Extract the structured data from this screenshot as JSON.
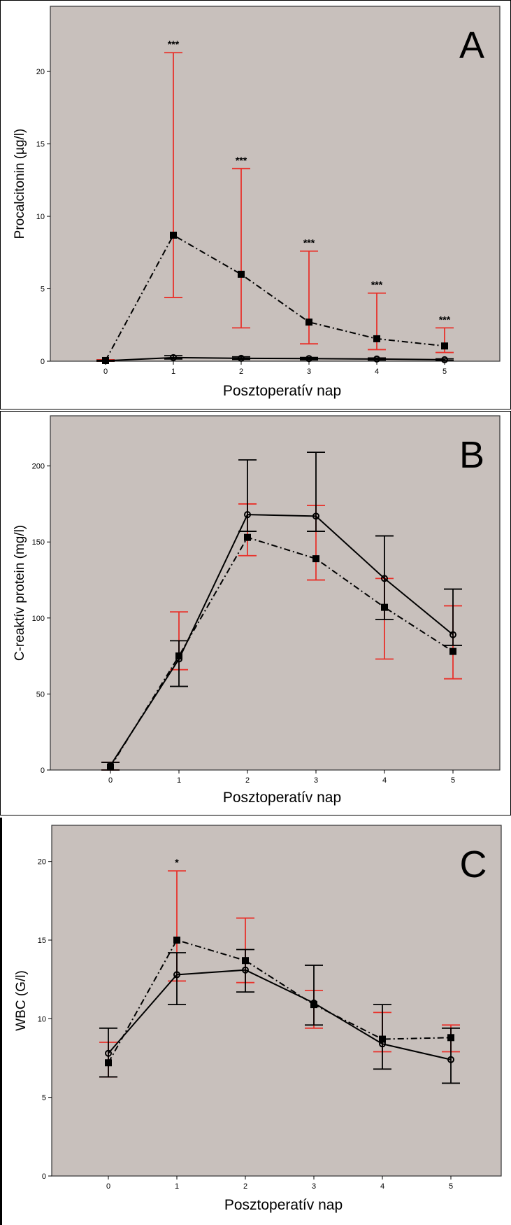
{
  "chart_data": [
    {
      "type": "line",
      "panel_label": "A",
      "xlabel": "Posztoperatív nap",
      "ylabel": "Procalcitonin (µg/l)",
      "categories": [
        "0",
        "1",
        "2",
        "3",
        "4",
        "5"
      ],
      "yticks": [
        "0",
        "5",
        "10",
        "15",
        "20"
      ],
      "ylim": [
        0,
        24.5
      ],
      "grid": false,
      "significance": [
        "",
        "***",
        "***",
        "***",
        "***",
        "***"
      ],
      "series": [
        {
          "style": "dash-dot",
          "marker": "square",
          "error_color": "#e8322b",
          "values": [
            0.05,
            8.7,
            6.0,
            2.7,
            1.55,
            1.05
          ],
          "err_low": [
            0.0,
            4.4,
            2.3,
            1.2,
            0.8,
            0.6
          ],
          "err_high": [
            0.1,
            21.3,
            13.3,
            7.6,
            4.7,
            2.3
          ]
        },
        {
          "style": "solid",
          "marker": "circle",
          "error_color": "#000000",
          "values": [
            0.03,
            0.25,
            0.2,
            0.18,
            0.15,
            0.1
          ],
          "err_low": [
            0.0,
            0.15,
            0.12,
            0.1,
            0.08,
            0.05
          ],
          "err_high": [
            0.06,
            0.38,
            0.3,
            0.26,
            0.22,
            0.16
          ]
        }
      ]
    },
    {
      "type": "line",
      "panel_label": "B",
      "xlabel": "Posztoperatív nap",
      "ylabel": "C-reaktív protein (mg/l)",
      "categories": [
        "0",
        "1",
        "2",
        "3",
        "4",
        "5"
      ],
      "yticks": [
        "0",
        "50",
        "100",
        "150",
        "200"
      ],
      "ylim": [
        0,
        233
      ],
      "grid": false,
      "significance": [
        "",
        "",
        "",
        "",
        "",
        ""
      ],
      "series": [
        {
          "style": "dash-dot",
          "marker": "square",
          "error_color": "#e8322b",
          "values": [
            2,
            75,
            153,
            139,
            107,
            78
          ],
          "err_low": [
            0,
            66,
            141,
            125,
            73,
            60
          ],
          "err_high": [
            5,
            104,
            175,
            174,
            126,
            108
          ]
        },
        {
          "style": "solid",
          "marker": "circle",
          "error_color": "#000000",
          "values": [
            3,
            73,
            168,
            167,
            126,
            89
          ],
          "err_low": [
            0,
            55,
            157,
            157,
            99,
            82
          ],
          "err_high": [
            5,
            85,
            204,
            209,
            154,
            119
          ]
        }
      ]
    },
    {
      "type": "line",
      "panel_label": "C",
      "xlabel": "Posztoperatív nap",
      "ylabel": "WBC (G/l)",
      "categories": [
        "0",
        "1",
        "2",
        "3",
        "4",
        "5"
      ],
      "yticks": [
        "0",
        "5",
        "10",
        "15",
        "20"
      ],
      "ylim": [
        0,
        22.3
      ],
      "grid": false,
      "significance": [
        "",
        "*",
        "",
        "",
        "",
        ""
      ],
      "series": [
        {
          "style": "dash-dot",
          "marker": "square",
          "error_color": "#e8322b",
          "values": [
            7.2,
            15.0,
            13.7,
            10.9,
            8.7,
            8.8
          ],
          "err_low": [
            6.3,
            12.4,
            12.3,
            9.4,
            7.9,
            7.9
          ],
          "err_high": [
            8.5,
            19.4,
            16.4,
            11.8,
            10.4,
            9.6
          ]
        },
        {
          "style": "solid",
          "marker": "circle",
          "error_color": "#000000",
          "values": [
            7.8,
            12.8,
            13.1,
            11.0,
            8.4,
            7.4
          ],
          "err_low": [
            6.3,
            10.9,
            11.7,
            9.6,
            6.8,
            5.9
          ],
          "err_high": [
            9.4,
            14.2,
            14.4,
            13.4,
            10.9,
            9.4
          ]
        }
      ]
    }
  ]
}
